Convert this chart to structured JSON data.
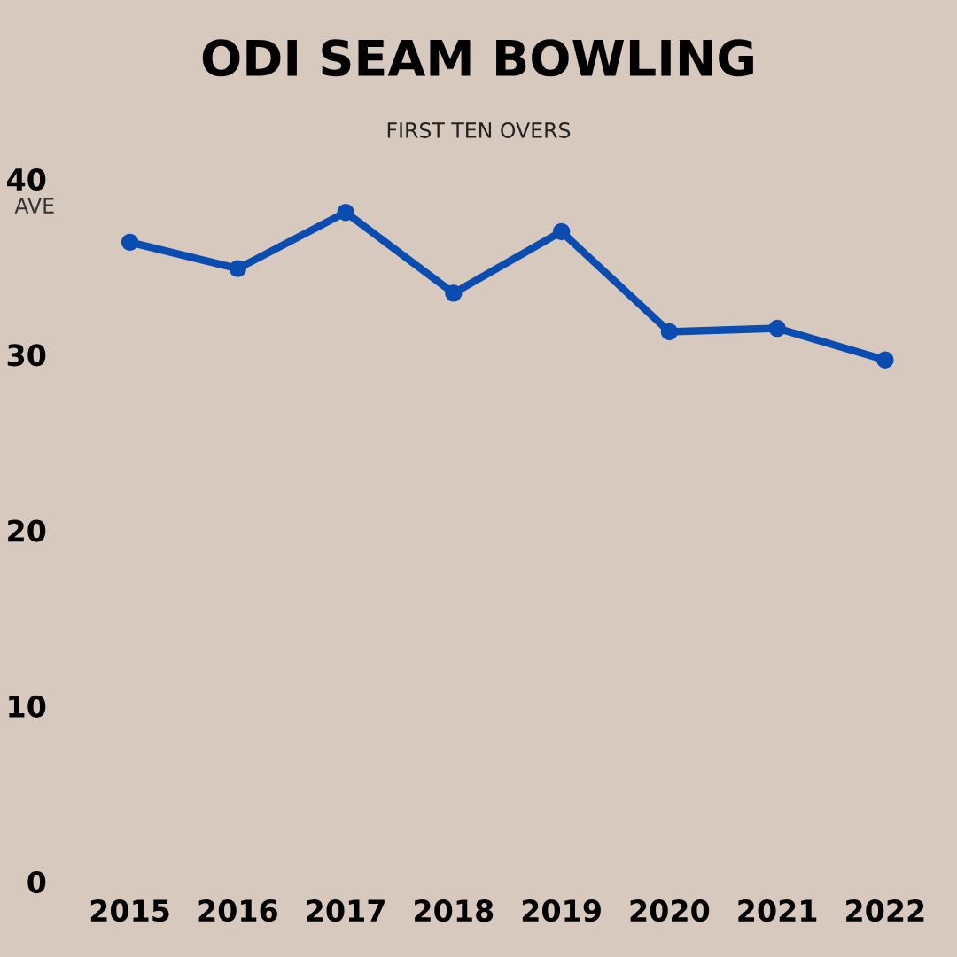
{
  "chart_data": {
    "type": "line",
    "title": "ODI SEAM BOWLING",
    "subtitle": "FIRST TEN OVERS",
    "ylabel": "AVE",
    "categories": [
      "2015",
      "2016",
      "2017",
      "2018",
      "2019",
      "2020",
      "2021",
      "2022"
    ],
    "series": [
      {
        "color": "#0a4cb0",
        "values": [
          36.4,
          34.9,
          38.1,
          33.5,
          37.0,
          31.3,
          31.5,
          29.7
        ]
      }
    ],
    "ylim": [
      0,
      40
    ],
    "yticks": [
      0,
      10,
      20,
      30,
      40
    ],
    "grid": false,
    "marker": "circle",
    "line_style": "solid"
  }
}
